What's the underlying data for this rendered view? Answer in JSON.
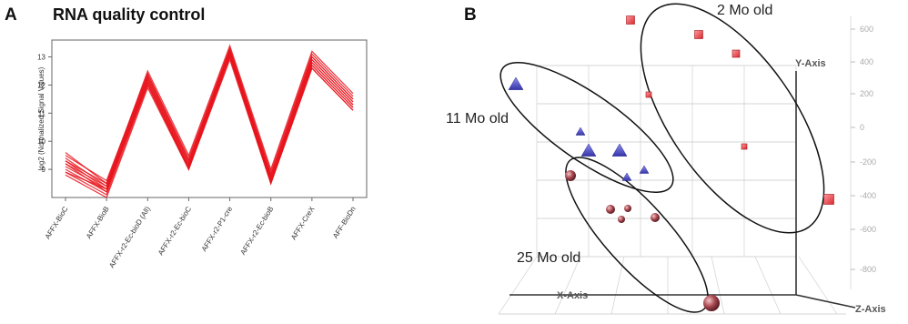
{
  "panel_a": {
    "letter": "A",
    "title": "RNA quality control"
  },
  "panel_b": {
    "letter": "B"
  },
  "chart_data": [
    {
      "type": "line",
      "title": "RNA quality control",
      "ylabel": "log2 (Normalized Signal Values)",
      "xlabel": "",
      "ylim": [
        8,
        13.6
      ],
      "y_ticks": [
        9,
        10,
        11,
        12,
        13
      ],
      "categories": [
        "AFFX-BioC",
        "AFFX-BioB",
        "AFFX-r2-Ec-bioD (All)",
        "AFFX-r2-Ec-bioC",
        "AFFX-r2-P1-cre",
        "AFFX-r2-Ec-bioB",
        "AFFX-CreX",
        "AFF-BioDn"
      ],
      "color": "#e8141c",
      "series": [
        {
          "values": [
            9.6,
            8.5,
            12.5,
            9.5,
            13.4,
            9.0,
            13.2,
            11.7
          ]
        },
        {
          "values": [
            9.5,
            8.6,
            12.4,
            9.4,
            13.3,
            8.9,
            13.1,
            11.6
          ]
        },
        {
          "values": [
            9.4,
            8.4,
            12.4,
            9.3,
            13.3,
            8.8,
            13.0,
            11.5
          ]
        },
        {
          "values": [
            9.3,
            8.5,
            12.3,
            9.3,
            13.2,
            8.8,
            13.0,
            11.5
          ]
        },
        {
          "values": [
            9.3,
            8.3,
            12.3,
            9.2,
            13.2,
            8.7,
            12.9,
            11.4
          ]
        },
        {
          "values": [
            9.2,
            8.4,
            12.2,
            9.2,
            13.2,
            8.7,
            12.9,
            11.4
          ]
        },
        {
          "values": [
            9.2,
            8.2,
            12.2,
            9.1,
            13.1,
            8.6,
            12.8,
            11.3
          ]
        },
        {
          "values": [
            9.1,
            8.3,
            12.1,
            9.1,
            13.1,
            8.6,
            12.8,
            11.3
          ]
        },
        {
          "values": [
            9.0,
            8.2,
            12.1,
            9.0,
            13.0,
            8.5,
            12.7,
            11.2
          ]
        },
        {
          "values": [
            8.9,
            8.1,
            12.0,
            9.0,
            13.0,
            8.5,
            12.6,
            11.1
          ]
        },
        {
          "values": [
            8.9,
            8.3,
            12.0,
            9.1,
            13.1,
            8.6,
            12.7,
            11.2
          ]
        },
        {
          "values": [
            8.8,
            8.0,
            11.9,
            9.0,
            12.9,
            8.5,
            12.6,
            11.1
          ]
        }
      ]
    },
    {
      "type": "scatter",
      "title": "",
      "axes": {
        "x": "X-Axis",
        "y": "Y-Axis",
        "z": "Z-Axis"
      },
      "y_ticks": [
        "600",
        "400",
        "200",
        "0",
        "-200",
        "-400",
        "-600",
        "-800"
      ],
      "groups": [
        {
          "label": "2 Mo old",
          "marker": "cube",
          "color": "#e0484c"
        },
        {
          "label": "11 Mo old",
          "marker": "triangle",
          "color": "#5a5ad0"
        },
        {
          "label": "25 Mo old",
          "marker": "sphere",
          "color": "#9a4046"
        }
      ]
    }
  ]
}
